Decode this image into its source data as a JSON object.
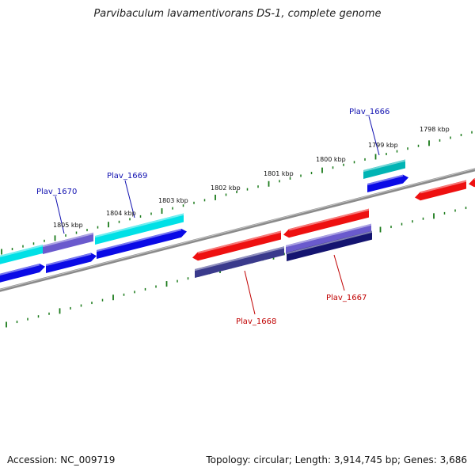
{
  "title": "Parvibaculum lavamentivorans DS-1, complete genome",
  "footer": {
    "accession": "Accession: NC_009719",
    "genome_info": "Topology: circular; Length: 3,914,745 bp; Genes: 3,686"
  },
  "colors": {
    "backbone": "#808080",
    "ticks": "#1a7a1a",
    "forward_label": "#1010b0",
    "reverse_label": "#c00000",
    "gene_blue": "#0a0ae6",
    "gene_cyan": "#00e0e6",
    "gene_teal": "#00b4b4",
    "gene_lilac": "#6a5acd",
    "gene_grey": "#b0b0c0",
    "gene_red": "#ee1010",
    "gene_navy": "#3a3a8c",
    "gene_darknavy": "#141470"
  },
  "kbp_labels": [
    "1805 kbp",
    "1804 kbp",
    "1803 kbp",
    "1802 kbp",
    "1801 kbp",
    "1800 kbp",
    "1799 kbp",
    "1798 kbp"
  ],
  "gene_labels": [
    {
      "name": "Plav_1670",
      "strand": "forward"
    },
    {
      "name": "Plav_1669",
      "strand": "forward"
    },
    {
      "name": "Plav_1666",
      "strand": "forward"
    },
    {
      "name": "Plav_1668",
      "strand": "reverse"
    },
    {
      "name": "Plav_1667",
      "strand": "reverse"
    }
  ]
}
